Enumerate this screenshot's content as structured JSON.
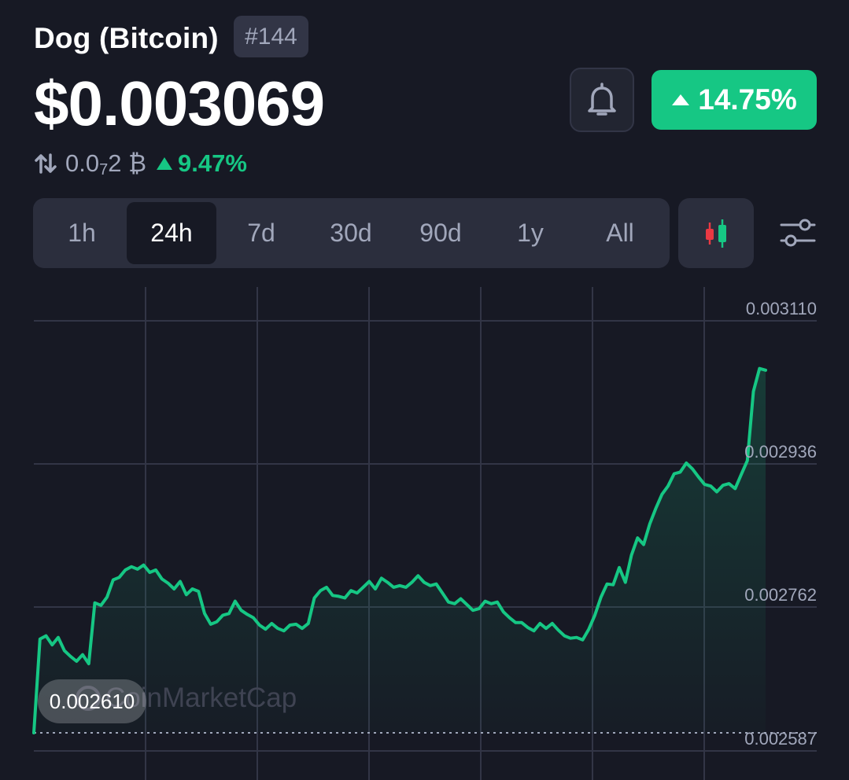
{
  "header": {
    "coin_name": "Dog (Bitcoin)",
    "rank": "#144",
    "price": "$0.003069",
    "btc_price_prefix": "0.0",
    "btc_price_subscript": "7",
    "btc_price_suffix": "2 ₿",
    "btc_change": "9.47%",
    "change_24h": "14.75%",
    "swap_icon": "swap-arrows-icon",
    "bell_icon": "bell-icon"
  },
  "tabs": [
    "1h",
    "24h",
    "7d",
    "30d",
    "90d",
    "1y",
    "All"
  ],
  "active_tab": "24h",
  "toolbar": {
    "candle_icon": "candlestick-icon",
    "settings_icon": "sliders-icon"
  },
  "colors": {
    "background": "#171924",
    "up": "#16c784",
    "down": "#ea3943",
    "muted": "#a1a7bb"
  },
  "chart_data": {
    "type": "area",
    "y_ticks": [
      "0.003110",
      "0.002936",
      "0.002762",
      "0.002587"
    ],
    "ylim": [
      0.002587,
      0.00311
    ],
    "grid": true,
    "low_label": "0.002610",
    "watermark": "CoinMarketCap",
    "values": [
      0.002609,
      0.002723,
      0.002727,
      0.002716,
      0.002725,
      0.002709,
      0.002702,
      0.002696,
      0.002704,
      0.002693,
      0.002767,
      0.002764,
      0.002774,
      0.002795,
      0.002798,
      0.002807,
      0.002811,
      0.002808,
      0.002813,
      0.002804,
      0.002807,
      0.002796,
      0.002791,
      0.002784,
      0.002793,
      0.002777,
      0.002784,
      0.002781,
      0.002754,
      0.002741,
      0.002744,
      0.002752,
      0.002754,
      0.002769,
      0.002758,
      0.002753,
      0.002749,
      0.00274,
      0.002735,
      0.002742,
      0.002736,
      0.002733,
      0.00274,
      0.002741,
      0.002736,
      0.002742,
      0.002773,
      0.002782,
      0.002786,
      0.002776,
      0.002775,
      0.002773,
      0.002782,
      0.002779,
      0.002786,
      0.002793,
      0.002784,
      0.002797,
      0.002792,
      0.002786,
      0.002788,
      0.002786,
      0.002792,
      0.0028,
      0.002792,
      0.002788,
      0.00279,
      0.002779,
      0.002768,
      0.002766,
      0.002772,
      0.002765,
      0.002758,
      0.00276,
      0.002769,
      0.002766,
      0.002768,
      0.002756,
      0.002749,
      0.002743,
      0.002743,
      0.002737,
      0.002733,
      0.002742,
      0.002736,
      0.002742,
      0.002734,
      0.002727,
      0.002724,
      0.002725,
      0.002722,
      0.002735,
      0.002752,
      0.002774,
      0.00279,
      0.002789,
      0.00281,
      0.002792,
      0.002825,
      0.002846,
      0.002838,
      0.002863,
      0.002882,
      0.002899,
      0.002909,
      0.002924,
      0.002926,
      0.002937,
      0.00293,
      0.00292,
      0.002911,
      0.002909,
      0.002902,
      0.00291,
      0.002912,
      0.002906,
      0.002923,
      0.00294,
      0.003024,
      0.003052,
      0.00305
    ]
  }
}
